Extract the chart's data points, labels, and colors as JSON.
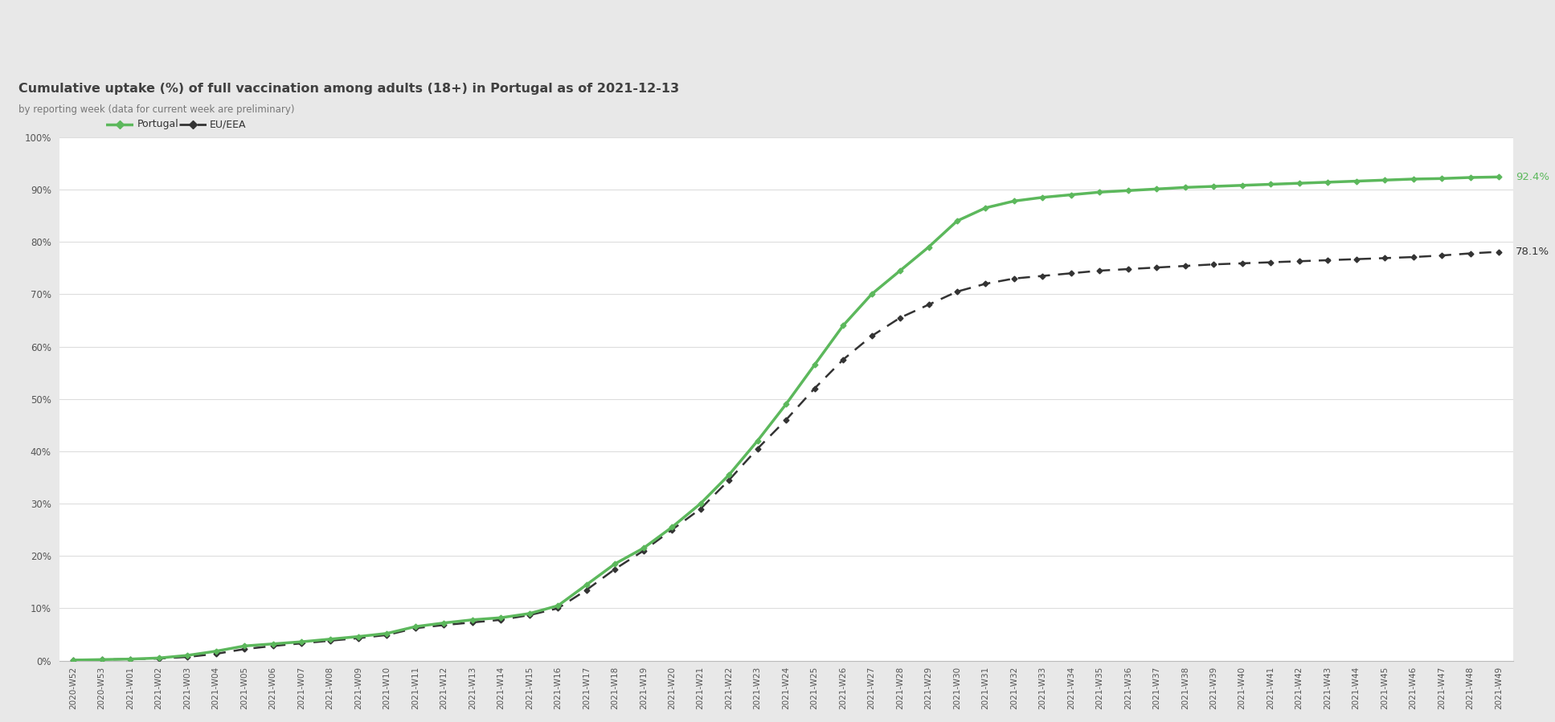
{
  "title": "Cumulative uptake (%) of full vaccination among adults (18+) in Portugal as of 2021-12-13",
  "subtitle": "by reporting week (data for current week are preliminary)",
  "header_bg": "#ffffff",
  "separator_color": "#8dc63f",
  "chart_bg": "#e8e8e8",
  "plot_bg": "#ffffff",
  "portugal_color": "#5cb85c",
  "eu_color": "#333333",
  "portugal_label": "Portugal",
  "eu_label": "EU/EEA",
  "portugal_end_label": "92.4%",
  "eu_end_label": "78.1%",
  "weeks": [
    "2020-W52",
    "2020-W53",
    "2021-W01",
    "2021-W02",
    "2021-W03",
    "2021-W04",
    "2021-W05",
    "2021-W06",
    "2021-W07",
    "2021-W08",
    "2021-W09",
    "2021-W10",
    "2021-W11",
    "2021-W12",
    "2021-W13",
    "2021-W14",
    "2021-W15",
    "2021-W16",
    "2021-W17",
    "2021-W18",
    "2021-W19",
    "2021-W20",
    "2021-W21",
    "2021-W22",
    "2021-W23",
    "2021-W24",
    "2021-W25",
    "2021-W26",
    "2021-W27",
    "2021-W28",
    "2021-W29",
    "2021-W30",
    "2021-W31",
    "2021-W32",
    "2021-W33",
    "2021-W34",
    "2021-W35",
    "2021-W36",
    "2021-W37",
    "2021-W38",
    "2021-W39",
    "2021-W40",
    "2021-W41",
    "2021-W42",
    "2021-W43",
    "2021-W44",
    "2021-W45",
    "2021-W46",
    "2021-W47",
    "2021-W48",
    "2021-W49"
  ],
  "portugal_values": [
    0.1,
    0.2,
    0.3,
    0.5,
    1.0,
    1.8,
    2.8,
    3.2,
    3.6,
    4.1,
    4.6,
    5.2,
    6.5,
    7.2,
    7.8,
    8.2,
    9.0,
    10.5,
    14.5,
    18.5,
    21.5,
    25.5,
    30.0,
    35.5,
    42.0,
    49.0,
    56.5,
    64.0,
    70.0,
    74.5,
    79.0,
    84.0,
    86.5,
    87.8,
    88.5,
    89.0,
    89.5,
    89.8,
    90.1,
    90.4,
    90.6,
    90.8,
    91.0,
    91.2,
    91.4,
    91.6,
    91.8,
    92.0,
    92.1,
    92.3,
    92.4
  ],
  "eu_values": [
    0.1,
    0.2,
    0.3,
    0.4,
    0.7,
    1.3,
    2.2,
    2.8,
    3.3,
    3.8,
    4.3,
    4.9,
    6.2,
    6.8,
    7.3,
    7.8,
    8.7,
    10.0,
    13.5,
    17.5,
    21.0,
    25.0,
    29.0,
    34.5,
    40.5,
    46.0,
    52.0,
    57.5,
    62.0,
    65.5,
    68.0,
    70.5,
    72.0,
    73.0,
    73.5,
    74.0,
    74.5,
    74.8,
    75.1,
    75.4,
    75.7,
    75.9,
    76.1,
    76.3,
    76.5,
    76.7,
    76.9,
    77.1,
    77.4,
    77.8,
    78.1
  ],
  "ylim": [
    0,
    100
  ],
  "yticks": [
    0,
    10,
    20,
    30,
    40,
    50,
    60,
    70,
    80,
    90,
    100
  ],
  "ytick_labels": [
    "0%",
    "10%",
    "20%",
    "30%",
    "40%",
    "50%",
    "60%",
    "70%",
    "80%",
    "90%",
    "100%"
  ]
}
